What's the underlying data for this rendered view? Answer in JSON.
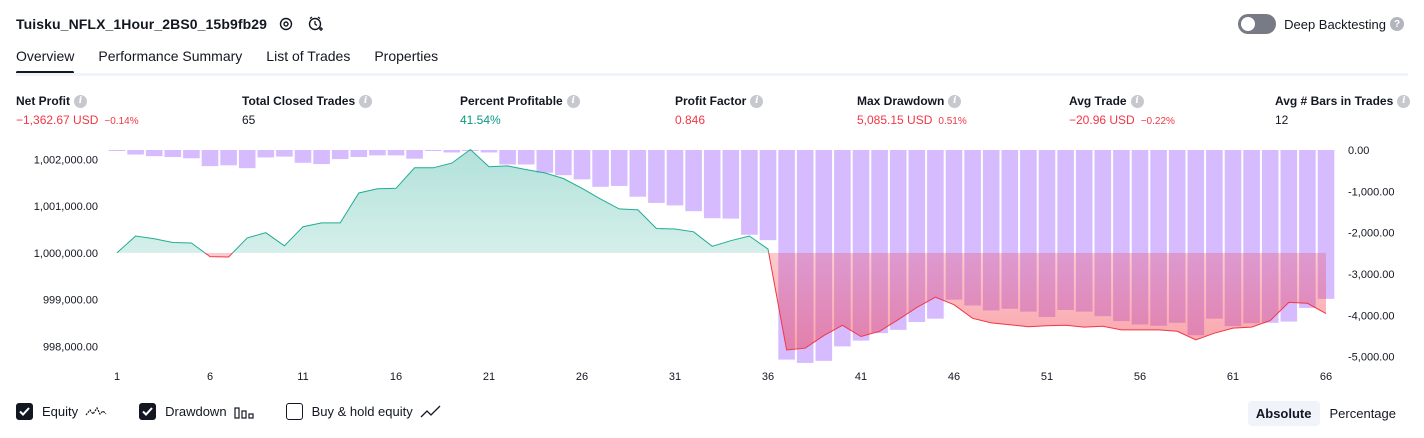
{
  "header": {
    "title": "Tuisku_NFLX_1Hour_2BS0_15b9fb29",
    "deep_backtesting_label": "Deep Backtesting"
  },
  "tabs": [
    "Overview",
    "Performance Summary",
    "List of Trades",
    "Properties"
  ],
  "metrics": [
    {
      "label": "Net Profit",
      "value": "−1,362.67 USD",
      "pct": "−0.14%",
      "tone": "neg"
    },
    {
      "label": "Total Closed Trades",
      "value": "65",
      "pct": "",
      "tone": "plain"
    },
    {
      "label": "Percent Profitable",
      "value": "41.54%",
      "pct": "",
      "tone": "pos"
    },
    {
      "label": "Profit Factor",
      "value": "0.846",
      "pct": "",
      "tone": "neg"
    },
    {
      "label": "Max Drawdown",
      "value": "5,085.15 USD",
      "pct": "0.51%",
      "tone": "neg"
    },
    {
      "label": "Avg Trade",
      "value": "−20.96 USD",
      "pct": "−0.22%",
      "tone": "neg"
    },
    {
      "label": "Avg # Bars in Trades",
      "value": "12",
      "pct": "",
      "tone": "plain"
    }
  ],
  "legend": {
    "equity_label": "Equity",
    "drawdown_label": "Drawdown",
    "buyhold_label": "Buy & hold equity",
    "equity_checked": true,
    "drawdown_checked": true,
    "buyhold_checked": false
  },
  "mode": {
    "absolute_label": "Absolute",
    "percentage_label": "Percentage",
    "selected": "Absolute"
  },
  "colors": {
    "equity_line": "#22ab94",
    "loss_line": "#f23645",
    "drawdown_bar": "#d1b5ff",
    "text": "#131722"
  },
  "chart_data": {
    "type": "line",
    "x_ticks": [
      "1",
      "6",
      "11",
      "16",
      "21",
      "26",
      "31",
      "36",
      "41",
      "46",
      "51",
      "56",
      "61",
      "66"
    ],
    "y_left_ticks": [
      "1,002,000.00",
      "1,001,000.00",
      "1,000,000.00",
      "999,000.00",
      "998,000.00"
    ],
    "y_right_ticks": [
      "0.00",
      "-1,000.00",
      "-2,000.00",
      "-3,000.00",
      "-4,000.00",
      "-5,000.00"
    ],
    "y_left_range": [
      997600,
      1002200
    ],
    "y_right_range": [
      -5200,
      0
    ],
    "baseline": 1000000,
    "series": [
      {
        "type": "line",
        "x": [
          1,
          2,
          3,
          4,
          5,
          6,
          7,
          8,
          9,
          10,
          11,
          12,
          13,
          14,
          15,
          16,
          17,
          18,
          19,
          20,
          21,
          22,
          23,
          24,
          25,
          26,
          27,
          28,
          29,
          30,
          31,
          32,
          33,
          34,
          35,
          36,
          37,
          38,
          39,
          40,
          41,
          42,
          43,
          44,
          45,
          46,
          47,
          48,
          49,
          50,
          51,
          52,
          53,
          54,
          55,
          56,
          57,
          58,
          59,
          60,
          61,
          62,
          63,
          64,
          65,
          66
        ],
        "values": [
          1000000,
          1000360,
          1000300,
          1000220,
          1000210,
          999920,
          999910,
          1000320,
          1000430,
          1000150,
          1000560,
          1000640,
          1000640,
          1001280,
          1001370,
          1001380,
          1001820,
          1001820,
          1001920,
          1002210,
          1001840,
          1001860,
          1001780,
          1001710,
          1001590,
          1001380,
          1001150,
          1000940,
          1000920,
          1000520,
          1000510,
          1000450,
          1000140,
          1000260,
          1000360,
          1000080,
          997920,
          997960,
          998230,
          998450,
          998210,
          998320,
          998570,
          998830,
          999050,
          998890,
          998600,
          998500,
          998460,
          998420,
          998440,
          998450,
          998410,
          998430,
          998350,
          998350,
          998350,
          998320,
          998140,
          998280,
          998390,
          998410,
          998550,
          998940,
          998920,
          998700
        ]
      },
      {
        "type": "bar",
        "x": [
          1,
          2,
          3,
          4,
          5,
          6,
          7,
          8,
          9,
          10,
          11,
          12,
          13,
          14,
          15,
          16,
          17,
          18,
          19,
          20,
          21,
          22,
          23,
          24,
          25,
          26,
          27,
          28,
          29,
          30,
          31,
          32,
          33,
          34,
          35,
          36,
          37,
          38,
          39,
          40,
          41,
          42,
          43,
          44,
          45,
          46,
          47,
          48,
          49,
          50,
          51,
          52,
          53,
          54,
          55,
          56,
          57,
          58,
          59,
          60,
          61,
          62,
          63,
          64,
          65,
          66
        ],
        "values": [
          -20,
          -110,
          -150,
          -170,
          -200,
          -390,
          -370,
          -440,
          -180,
          -160,
          -310,
          -340,
          -220,
          -170,
          -130,
          -130,
          -210,
          -20,
          -60,
          -20,
          -60,
          -350,
          -350,
          -550,
          -610,
          -710,
          -890,
          -870,
          -1130,
          -1280,
          -1340,
          -1480,
          -1650,
          -1660,
          -2050,
          -2180,
          -5070,
          -5150,
          -5100,
          -4750,
          -4610,
          -4430,
          -4350,
          -4160,
          -4080,
          -3620,
          -3760,
          -3880,
          -3840,
          -3910,
          -4040,
          -3870,
          -3910,
          -4020,
          -4140,
          -4220,
          -4250,
          -4180,
          -4480,
          -4080,
          -4260,
          -4190,
          -4180,
          -4150,
          -3820,
          -3600
        ]
      }
    ]
  }
}
